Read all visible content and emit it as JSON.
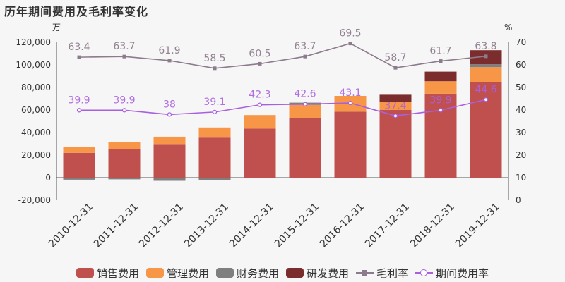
{
  "title": "历年期间费用及毛利率变化",
  "chart_data": {
    "type": "bar",
    "categories": [
      "2010-12-31",
      "2011-12-31",
      "2012-12-31",
      "2013-12-31",
      "2014-12-31",
      "2015-12-31",
      "2016-12-31",
      "2017-12-31",
      "2018-12-31",
      "2019-12-31"
    ],
    "y_left_unit": "万",
    "y_right_unit": "%",
    "y_left_ticks": [
      "-20,000",
      "0",
      "20,000",
      "40,000",
      "60,000",
      "80,000",
      "100,000",
      "120,000"
    ],
    "y_left_range": [
      -20000,
      120000
    ],
    "y_right_ticks": [
      "0",
      "10",
      "20",
      "30",
      "40",
      "50",
      "60",
      "70"
    ],
    "y_right_range": [
      0,
      70
    ],
    "bar_series": [
      {
        "name": "销售费用",
        "color": "#c0504d",
        "values": [
          22000,
          25500,
          29800,
          35500,
          43500,
          52500,
          58500,
          60000,
          74500,
          85000
        ]
      },
      {
        "name": "管理费用",
        "color": "#f79646",
        "values": [
          5000,
          6000,
          6500,
          9000,
          12000,
          12000,
          14000,
          7000,
          11000,
          13000
        ]
      },
      {
        "name": "财务费用",
        "color": "#7f7f7f",
        "values": [
          -1800,
          -1500,
          -2800,
          -2000,
          0,
          2000,
          0,
          0,
          0,
          2500
        ]
      },
      {
        "name": "研发费用",
        "color": "#7b2c2c",
        "values": [
          0,
          0,
          0,
          0,
          0,
          0,
          0,
          6500,
          8500,
          12500
        ]
      }
    ],
    "line_series": [
      {
        "name": "毛利率",
        "color": "#8c7b8c",
        "marker": "square",
        "axis": "right",
        "values": [
          63.4,
          63.7,
          61.9,
          58.5,
          60.5,
          63.7,
          69.5,
          58.7,
          61.7,
          63.8
        ],
        "labels": [
          "63.4",
          "63.7",
          "61.9",
          "58.5",
          "60.5",
          "63.7",
          "69.5",
          "58.7",
          "61.7",
          "63.8"
        ]
      },
      {
        "name": "期间费用率",
        "color": "#a860e0",
        "marker": "circle",
        "axis": "right",
        "values": [
          39.9,
          39.9,
          38,
          39.1,
          42.3,
          42.6,
          43.1,
          37.4,
          39.9,
          44.6
        ],
        "labels": [
          "39.9",
          "39.9",
          "38",
          "39.1",
          "42.3",
          "42.6",
          "43.1",
          "37.4",
          "39.9",
          "44.6"
        ]
      }
    ]
  }
}
